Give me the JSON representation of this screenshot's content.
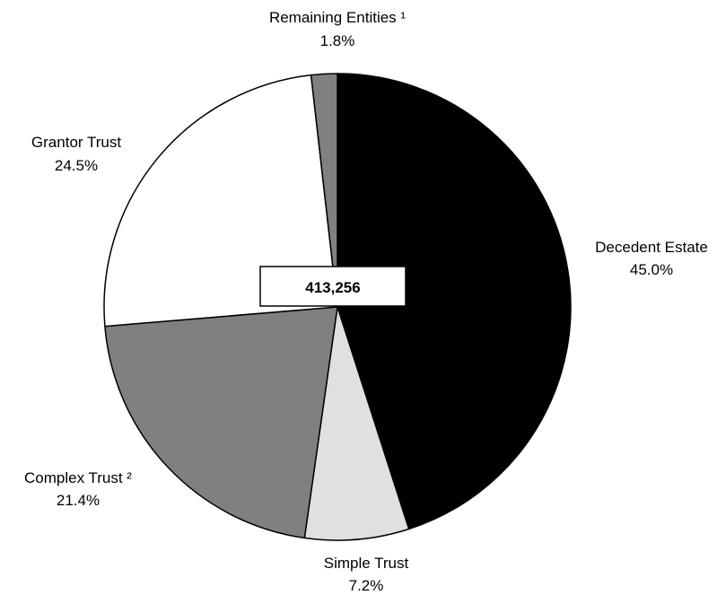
{
  "chart_data": {
    "type": "pie",
    "center_label": "413,256",
    "slices": [
      {
        "label": "Decedent Estate",
        "value_label": "45.0%",
        "value": 45.0,
        "color": "#000000"
      },
      {
        "label": "Simple Trust",
        "value_label": "7.2%",
        "value": 7.2,
        "color": "#e0e0e0"
      },
      {
        "label": "Complex Trust ²",
        "value_label": "21.4%",
        "value": 21.4,
        "color": "#808080"
      },
      {
        "label": "Grantor Trust",
        "value_label": "24.5%",
        "value": 24.5,
        "color": "#ffffff"
      },
      {
        "label": "Remaining Entities ¹",
        "value_label": "1.8%",
        "value": 1.8,
        "color": "#808080"
      }
    ]
  }
}
